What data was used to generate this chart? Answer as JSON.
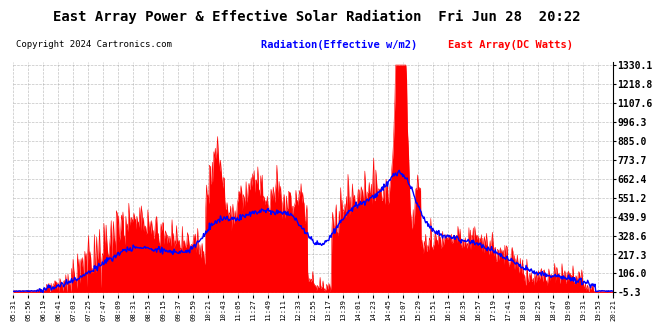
{
  "title": "East Array Power & Effective Solar Radiation  Fri Jun 28  20:22",
  "copyright": "Copyright 2024 Cartronics.com",
  "legend_radiation": "Radiation(Effective w/m2)",
  "legend_east": "East Array(DC Watts)",
  "y_min": -5.3,
  "y_max": 1330.1,
  "yticks": [
    1330.1,
    1218.8,
    1107.6,
    996.3,
    885.0,
    773.7,
    662.4,
    551.2,
    439.9,
    328.6,
    217.3,
    106.0,
    -5.3
  ],
  "bg_color": "#ffffff",
  "plot_bg_color": "#ffffff",
  "grid_color": "#aaaaaa",
  "title_color": "black",
  "radiation_color": "blue",
  "east_array_color": "red",
  "xtick_labels": [
    "05:31",
    "05:56",
    "06:19",
    "06:41",
    "07:03",
    "07:25",
    "07:47",
    "08:09",
    "08:31",
    "08:53",
    "09:15",
    "09:37",
    "09:59",
    "10:21",
    "10:43",
    "11:05",
    "11:27",
    "11:49",
    "12:11",
    "12:33",
    "12:55",
    "13:17",
    "13:39",
    "14:01",
    "14:23",
    "14:45",
    "15:07",
    "15:29",
    "15:51",
    "16:13",
    "16:35",
    "16:57",
    "17:19",
    "17:41",
    "18:03",
    "18:25",
    "18:47",
    "19:09",
    "19:31",
    "19:53",
    "20:21"
  ]
}
